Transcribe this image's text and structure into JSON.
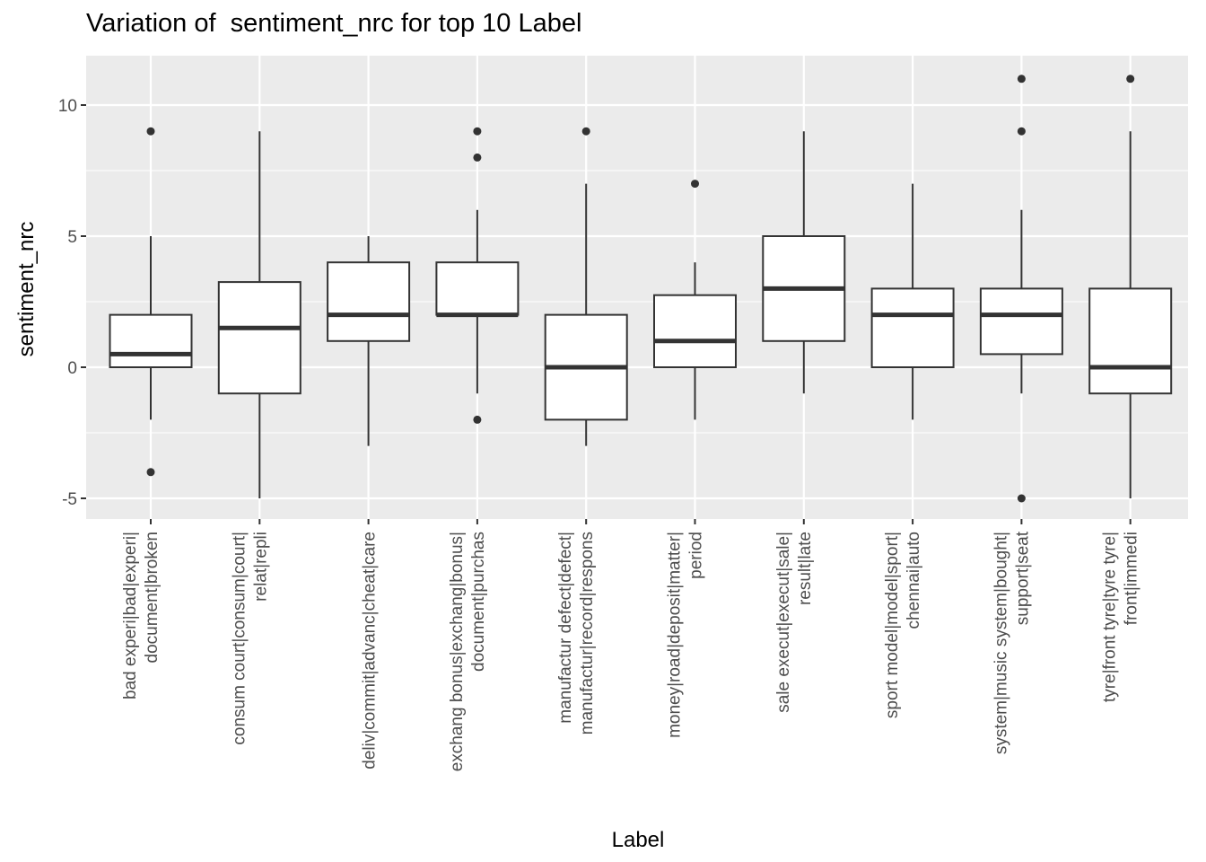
{
  "chart_data": {
    "type": "boxplot",
    "title": "Variation of  sentiment_nrc for top 10 Label",
    "xlabel": "Label",
    "ylabel": "sentiment_nrc",
    "ylim": [
      -5.8,
      12.0
    ],
    "yticks": [
      -5,
      0,
      5,
      10
    ],
    "grid": true,
    "categories": [
      {
        "lines": [
          "bad experi|bad|experi|",
          "document|broken"
        ],
        "min": -2,
        "q1": 0,
        "median": 0.5,
        "q3": 2,
        "max": 5,
        "outliers": [
          9,
          -4
        ]
      },
      {
        "lines": [
          "consum court|consum|court|",
          "relat|repli"
        ],
        "min": -5,
        "q1": -1,
        "median": 1.5,
        "q3": 3.25,
        "max": 9,
        "outliers": []
      },
      {
        "lines": [
          "deliv|commit|advanc|cheat|care"
        ],
        "min": -3,
        "q1": 1,
        "median": 2,
        "q3": 4,
        "max": 5,
        "outliers": []
      },
      {
        "lines": [
          "exchang bonus|exchang|bonus|",
          "document|purchas"
        ],
        "min": -1,
        "q1": 2,
        "median": 2,
        "q3": 4,
        "max": 6,
        "outliers": [
          9,
          8,
          -2
        ]
      },
      {
        "lines": [
          "manufactur defect|defect|",
          "manufactur|record|respons"
        ],
        "min": -3,
        "q1": -2,
        "median": 0,
        "q3": 2,
        "max": 7,
        "outliers": [
          9
        ]
      },
      {
        "lines": [
          "money|road|deposit|matter|",
          "period"
        ],
        "min": -2,
        "q1": 0,
        "median": 1,
        "q3": 2.75,
        "max": 4,
        "outliers": [
          7
        ]
      },
      {
        "lines": [
          "sale execut|execut|sale|",
          "result|late"
        ],
        "min": -1,
        "q1": 1,
        "median": 3,
        "q3": 5,
        "max": 9,
        "outliers": []
      },
      {
        "lines": [
          "sport model|model|sport|",
          "chennai|auto"
        ],
        "min": -2,
        "q1": 0,
        "median": 2,
        "q3": 3,
        "max": 7,
        "outliers": []
      },
      {
        "lines": [
          "system|music system|bought|",
          "support|seat"
        ],
        "min": -1,
        "q1": 0.5,
        "median": 2,
        "q3": 3,
        "max": 6,
        "outliers": [
          11,
          9,
          -5
        ]
      },
      {
        "lines": [
          "tyre|front tyre|tyre tyre|",
          "front|immedi"
        ],
        "min": -5,
        "q1": -1,
        "median": 0,
        "q3": 3,
        "max": 9,
        "outliers": [
          11
        ]
      }
    ],
    "colors": {
      "panel": "#EBEBEB",
      "grid": "#FFFFFF",
      "box_fill": "#FFFFFF",
      "box_line": "#333333",
      "outlier": "#333333",
      "tick_label": "#4D4D4D"
    }
  }
}
